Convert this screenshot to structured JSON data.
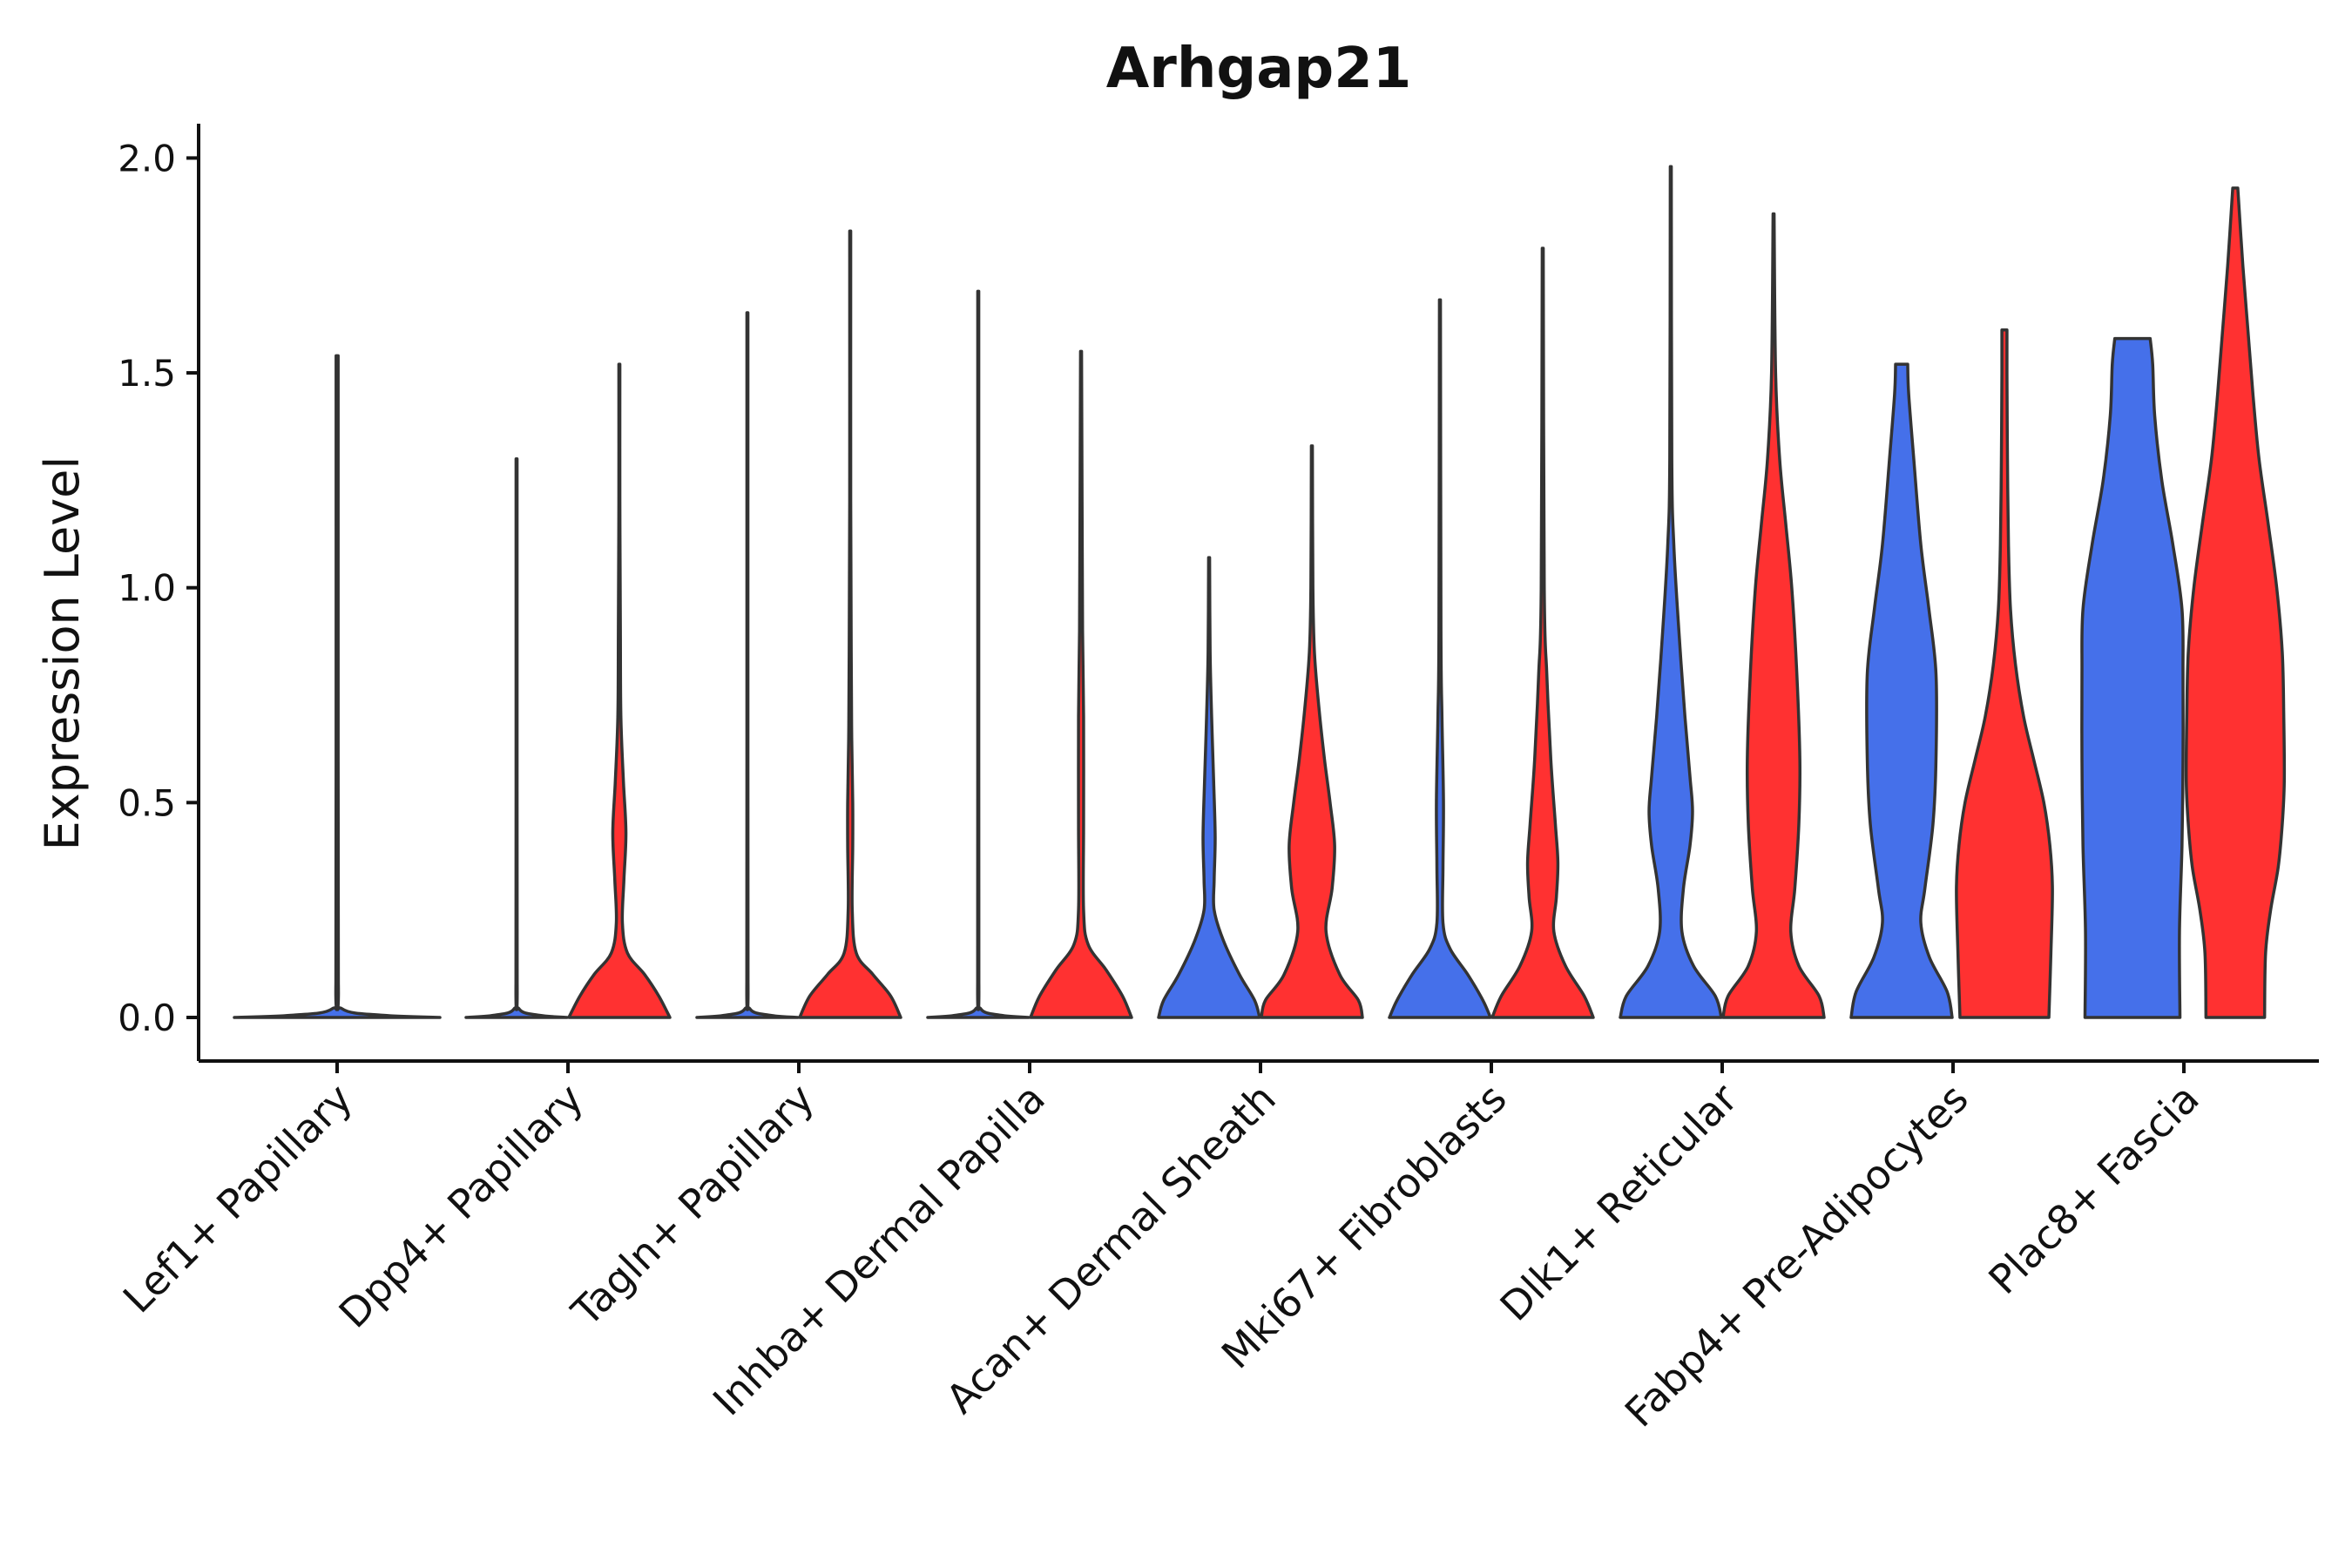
{
  "chart_data": {
    "type": "violin",
    "title": "Arhgap21",
    "xlabel": "",
    "ylabel": "Expression Level",
    "ylim": [
      -0.1,
      2.08
    ],
    "yticks": [
      "0.0",
      "0.5",
      "1.0",
      "1.5",
      "2.0"
    ],
    "ytick_values": [
      0,
      0.5,
      1.0,
      1.5,
      2.0
    ],
    "grid": false,
    "legend": "none",
    "categories": [
      "Lef1+ Papillary",
      "Dpp4+ Papillary",
      "Tagln+ Papillary",
      "Inhba+ Dermal Papilla",
      "Acan+ Dermal Sheath",
      "Mki67+ Fibroblasts",
      "Dlk1+ Reticular",
      "Fabp4+ Pre-Adipocytes",
      "Plac8+ Fascia"
    ],
    "series": [
      {
        "name": "blue group",
        "color": "#4570EA",
        "violins": [
          {
            "max": 1.54,
            "profile": [
              [
                0,
                1
              ],
              [
                0.005,
                0.45
              ],
              [
                0.02,
                0.05
              ],
              [
                0.08,
                0.012
              ],
              [
                0.6,
                0.01
              ],
              [
                1.54,
                0.01
              ]
            ]
          },
          {
            "max": 1.3,
            "profile": [
              [
                0,
                1
              ],
              [
                0.005,
                0.45
              ],
              [
                0.02,
                0.05
              ],
              [
                0.08,
                0.012
              ],
              [
                0.6,
                0.01
              ],
              [
                1.3,
                0.01
              ]
            ]
          },
          {
            "max": 1.64,
            "profile": [
              [
                0,
                1
              ],
              [
                0.005,
                0.45
              ],
              [
                0.02,
                0.05
              ],
              [
                0.08,
                0.012
              ],
              [
                0.6,
                0.01
              ],
              [
                1.64,
                0.01
              ]
            ]
          },
          {
            "max": 1.69,
            "profile": [
              [
                0,
                1
              ],
              [
                0.005,
                0.45
              ],
              [
                0.02,
                0.05
              ],
              [
                0.08,
                0.012
              ],
              [
                0.6,
                0.01
              ],
              [
                1.69,
                0.01
              ]
            ]
          },
          {
            "max": 1.07,
            "profile": [
              [
                0,
                1
              ],
              [
                0.04,
                0.9
              ],
              [
                0.1,
                0.6
              ],
              [
                0.18,
                0.28
              ],
              [
                0.25,
                0.1
              ],
              [
                0.32,
                0.1
              ],
              [
                0.42,
                0.12
              ],
              [
                0.55,
                0.09
              ],
              [
                0.7,
                0.05
              ],
              [
                0.85,
                0.02
              ],
              [
                1.07,
                0.01
              ]
            ]
          },
          {
            "max": 1.67,
            "profile": [
              [
                0,
                1
              ],
              [
                0.04,
                0.85
              ],
              [
                0.1,
                0.55
              ],
              [
                0.16,
                0.2
              ],
              [
                0.22,
                0.06
              ],
              [
                0.35,
                0.06
              ],
              [
                0.5,
                0.07
              ],
              [
                0.7,
                0.04
              ],
              [
                0.9,
                0.02
              ],
              [
                1.67,
                0.01
              ]
            ]
          },
          {
            "max": 1.98,
            "profile": [
              [
                0,
                1
              ],
              [
                0.05,
                0.88
              ],
              [
                0.12,
                0.45
              ],
              [
                0.2,
                0.22
              ],
              [
                0.3,
                0.25
              ],
              [
                0.4,
                0.38
              ],
              [
                0.48,
                0.43
              ],
              [
                0.56,
                0.38
              ],
              [
                0.7,
                0.28
              ],
              [
                0.9,
                0.16
              ],
              [
                1.1,
                0.06
              ],
              [
                1.3,
                0.02
              ],
              [
                1.98,
                0.01
              ]
            ]
          },
          {
            "max": 1.52,
            "profile": [
              [
                0,
                1
              ],
              [
                0.06,
                0.9
              ],
              [
                0.14,
                0.55
              ],
              [
                0.22,
                0.38
              ],
              [
                0.3,
                0.46
              ],
              [
                0.45,
                0.62
              ],
              [
                0.6,
                0.68
              ],
              [
                0.8,
                0.68
              ],
              [
                0.95,
                0.54
              ],
              [
                1.1,
                0.38
              ],
              [
                1.3,
                0.24
              ],
              [
                1.45,
                0.14
              ],
              [
                1.52,
                0.12
              ]
            ]
          },
          {
            "max": 1.58,
            "profile": [
              [
                0,
                0.94
              ],
              [
                0.2,
                0.93
              ],
              [
                0.4,
                0.98
              ],
              [
                0.6,
                1.0
              ],
              [
                0.8,
                1.0
              ],
              [
                0.95,
                0.98
              ],
              [
                1.1,
                0.8
              ],
              [
                1.25,
                0.58
              ],
              [
                1.4,
                0.44
              ],
              [
                1.52,
                0.4
              ],
              [
                1.58,
                0.35
              ]
            ]
          }
        ]
      },
      {
        "name": "red group",
        "color": "#FF3131",
        "violins": [
          {
            "max": 1.52,
            "profile": [
              [
                0,
                1
              ],
              [
                0.05,
                0.78
              ],
              [
                0.1,
                0.5
              ],
              [
                0.15,
                0.16
              ],
              [
                0.22,
                0.06
              ],
              [
                0.32,
                0.09
              ],
              [
                0.43,
                0.13
              ],
              [
                0.55,
                0.08
              ],
              [
                0.7,
                0.03
              ],
              [
                0.9,
                0.02
              ],
              [
                1.2,
                0.01
              ],
              [
                1.52,
                0.01
              ]
            ]
          },
          {
            "max": 1.83,
            "profile": [
              [
                0,
                1
              ],
              [
                0.05,
                0.8
              ],
              [
                0.1,
                0.45
              ],
              [
                0.15,
                0.12
              ],
              [
                0.25,
                0.04
              ],
              [
                0.4,
                0.05
              ],
              [
                0.5,
                0.05
              ],
              [
                0.65,
                0.03
              ],
              [
                0.85,
                0.02
              ],
              [
                1.2,
                0.01
              ],
              [
                1.83,
                0.01
              ]
            ]
          },
          {
            "max": 1.55,
            "profile": [
              [
                0,
                1
              ],
              [
                0.05,
                0.82
              ],
              [
                0.11,
                0.5
              ],
              [
                0.17,
                0.14
              ],
              [
                0.25,
                0.05
              ],
              [
                0.45,
                0.05
              ],
              [
                0.7,
                0.05
              ],
              [
                0.9,
                0.03
              ],
              [
                1.2,
                0.02
              ],
              [
                1.55,
                0.01
              ]
            ]
          },
          {
            "max": 1.33,
            "profile": [
              [
                0,
                1
              ],
              [
                0.04,
                0.92
              ],
              [
                0.1,
                0.55
              ],
              [
                0.2,
                0.28
              ],
              [
                0.3,
                0.4
              ],
              [
                0.4,
                0.45
              ],
              [
                0.5,
                0.36
              ],
              [
                0.6,
                0.25
              ],
              [
                0.72,
                0.14
              ],
              [
                0.85,
                0.05
              ],
              [
                1.0,
                0.02
              ],
              [
                1.33,
                0.01
              ]
            ]
          },
          {
            "max": 1.79,
            "profile": [
              [
                0,
                1
              ],
              [
                0.05,
                0.82
              ],
              [
                0.12,
                0.45
              ],
              [
                0.2,
                0.22
              ],
              [
                0.28,
                0.27
              ],
              [
                0.36,
                0.3
              ],
              [
                0.45,
                0.25
              ],
              [
                0.6,
                0.16
              ],
              [
                0.8,
                0.08
              ],
              [
                1.0,
                0.03
              ],
              [
                1.79,
                0.01
              ]
            ]
          },
          {
            "max": 1.87,
            "profile": [
              [
                0,
                1
              ],
              [
                0.05,
                0.9
              ],
              [
                0.12,
                0.5
              ],
              [
                0.2,
                0.34
              ],
              [
                0.3,
                0.42
              ],
              [
                0.45,
                0.5
              ],
              [
                0.6,
                0.52
              ],
              [
                0.8,
                0.46
              ],
              [
                1.0,
                0.36
              ],
              [
                1.15,
                0.24
              ],
              [
                1.3,
                0.12
              ],
              [
                1.5,
                0.04
              ],
              [
                1.87,
                0.01
              ]
            ]
          },
          {
            "max": 1.6,
            "profile": [
              [
                0,
                0.88
              ],
              [
                0.15,
                0.92
              ],
              [
                0.3,
                0.95
              ],
              [
                0.4,
                0.9
              ],
              [
                0.5,
                0.78
              ],
              [
                0.6,
                0.58
              ],
              [
                0.7,
                0.38
              ],
              [
                0.82,
                0.22
              ],
              [
                0.95,
                0.12
              ],
              [
                1.1,
                0.08
              ],
              [
                1.3,
                0.06
              ],
              [
                1.5,
                0.05
              ],
              [
                1.6,
                0.05
              ]
            ]
          },
          {
            "max": 1.93,
            "profile": [
              [
                0,
                0.58
              ],
              [
                0.15,
                0.6
              ],
              [
                0.25,
                0.7
              ],
              [
                0.35,
                0.85
              ],
              [
                0.45,
                0.93
              ],
              [
                0.55,
                0.97
              ],
              [
                0.7,
                0.96
              ],
              [
                0.85,
                0.93
              ],
              [
                1.0,
                0.82
              ],
              [
                1.15,
                0.65
              ],
              [
                1.3,
                0.47
              ],
              [
                1.45,
                0.35
              ],
              [
                1.6,
                0.25
              ],
              [
                1.75,
                0.15
              ],
              [
                1.93,
                0.05
              ]
            ]
          }
        ]
      }
    ],
    "groups_per_category": [
      [
        "blue group"
      ],
      [
        "blue group",
        "red group"
      ],
      [
        "blue group",
        "red group"
      ],
      [
        "blue group",
        "red group"
      ],
      [
        "blue group",
        "red group"
      ],
      [
        "blue group",
        "red group"
      ],
      [
        "blue group",
        "red group"
      ],
      [
        "blue group",
        "red group"
      ],
      [
        "blue group",
        "red group"
      ]
    ]
  }
}
